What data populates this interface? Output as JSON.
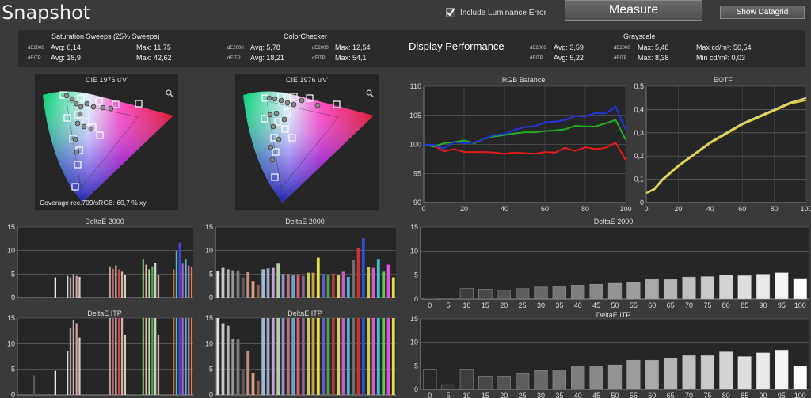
{
  "app": {
    "title": "Snapshot"
  },
  "toolbar": {
    "include_lum_label": "Include Luminance Error",
    "include_lum_checked": true,
    "measure_label": "Measure",
    "datagrid_label": "Show Datagrid"
  },
  "summary": {
    "saturation": {
      "title": "Saturation Sweeps (25% Sweeps)",
      "m1": "dE2000",
      "m2": "dEITP",
      "avg1": "Avg: 6,14",
      "max1": "Max: 11,75",
      "avg2": "Avg: 18,9",
      "max2": "Max: 42,62"
    },
    "colorchecker": {
      "title": "ColorChecker",
      "m1": "dE2000",
      "m2": "dEITP",
      "avg1": "Avg: 5,78",
      "max1": "Max: 12,54",
      "avg2": "Avg: 18,21",
      "max2": "Max: 54,1"
    },
    "display_performance": "Display Performance",
    "grayscale": {
      "title": "Grayscale",
      "m1": "dE2000",
      "m2": "dEITP",
      "avg1": "Avg: 3,59",
      "max1": "Max: 5,48",
      "avg2": "Avg: 5,22",
      "max2": "Max: 8,38",
      "maxcd": "Max cd/m²:  50,54",
      "mincd": "Min cd/m²:  0,03"
    }
  },
  "cie": {
    "title1": "CIE 1976 u'v'",
    "title2": "CIE 1976 u'v'",
    "coverage": "Coverage rec.709/sRGB:  60,7 % xy"
  },
  "chart_data": [
    {
      "type": "line",
      "title": "RGB Balance",
      "ylim": [
        90,
        110
      ],
      "xlim": [
        0,
        100
      ],
      "yticks": [
        90,
        95,
        100,
        105,
        110
      ],
      "xticks": [
        0,
        20,
        40,
        60,
        80,
        100
      ],
      "x": [
        0,
        5,
        10,
        15,
        20,
        25,
        30,
        35,
        40,
        45,
        50,
        55,
        60,
        65,
        70,
        75,
        80,
        85,
        90,
        95,
        100
      ],
      "series": [
        {
          "color": "#e81b1b",
          "values": [
            100,
            99.8,
            98.8,
            99.2,
            98.7,
            98.7,
            98.7,
            98.6,
            98.4,
            98.6,
            98.5,
            98.4,
            98.7,
            98.6,
            99.4,
            98.9,
            99.5,
            99.2,
            99.4,
            100.3,
            97.3
          ]
        },
        {
          "color": "#22b022",
          "values": [
            100,
            99.6,
            100.2,
            100.4,
            100.7,
            100.2,
            101,
            101.4,
            101.6,
            101.9,
            102.1,
            102.1,
            102.3,
            102.4,
            102.6,
            103.2,
            103.1,
            103.1,
            103.6,
            104.2,
            100.8
          ]
        },
        {
          "color": "#2233e0",
          "values": [
            100,
            99.9,
            99.3,
            100.4,
            100.2,
            100.3,
            101,
            101.6,
            101.8,
            102.5,
            103,
            103.1,
            103.8,
            103.9,
            104.2,
            104.9,
            104.8,
            105.4,
            105.3,
            106.5,
            102.5
          ]
        }
      ]
    },
    {
      "type": "line",
      "title": "EOTF",
      "ylim": [
        0,
        0.5
      ],
      "xlim": [
        0,
        100
      ],
      "yticks": [
        0,
        0.1,
        0.2,
        0.3,
        0.4,
        0.5
      ],
      "xticks": [
        0,
        20,
        40,
        60,
        80,
        100
      ],
      "x": [
        0,
        5,
        10,
        20,
        30,
        40,
        50,
        60,
        70,
        80,
        90,
        100
      ],
      "series": [
        {
          "color": "#d0d0a0",
          "values": [
            0.04,
            0.06,
            0.1,
            0.16,
            0.21,
            0.26,
            0.3,
            0.34,
            0.37,
            0.4,
            0.43,
            0.45
          ]
        },
        {
          "color": "#e6d230",
          "values": [
            0.04,
            0.055,
            0.095,
            0.155,
            0.205,
            0.255,
            0.295,
            0.335,
            0.365,
            0.395,
            0.425,
            0.44
          ]
        }
      ]
    },
    {
      "type": "bar",
      "title": "DeltaE 2000",
      "ylim": [
        0,
        15
      ],
      "yticks": [
        0,
        5,
        10,
        15
      ],
      "values": [
        0,
        0,
        0,
        0,
        0,
        0.1,
        0,
        0,
        0,
        0,
        0,
        0,
        4.3,
        0,
        0,
        0,
        4.6,
        4.3,
        5,
        4.6,
        4.4,
        0,
        0,
        0,
        0,
        0,
        0,
        0,
        0,
        0,
        6.6,
        6.1,
        6.8,
        6,
        5.5,
        4.8,
        0,
        0,
        0,
        0,
        0,
        8.2,
        7,
        6,
        6.6,
        7.4,
        4.8,
        0,
        0,
        0,
        0,
        6,
        10,
        11.7,
        7.2,
        8.2,
        6.8,
        6.6
      ],
      "colors": [
        "#a2a2a2",
        "#a2a2a2",
        "#a2a2a2",
        "#a2a2a2",
        "#a2a2a2",
        "#9c9c9c",
        "#a2a2a2",
        "#a2a2a2",
        "#a2a2a2",
        "#a2a2a2",
        "#a2a2a2",
        "#a2a2a2",
        "#e8e8e8",
        "#a2a2a2",
        "#a2a2a2",
        "#a2a2a2",
        "#d8d8d8",
        "#a9a0a0",
        "#c9aaaa",
        "#d49a9a",
        "#cfc9c9",
        "#a2a2a2",
        "#a2a2a2",
        "#a2a2a2",
        "#a2a2a2",
        "#a2a2a2",
        "#a2a2a2",
        "#a2a2a2",
        "#a2a2a2",
        "#a2a2a2",
        "#c2a09a",
        "#b07070",
        "#c8aaa0",
        "#d44a4a",
        "#d8b0b0",
        "#d8d0c0",
        "#a2a2a2",
        "#a2a2a2",
        "#a2a2a2",
        "#a2a2a2",
        "#a2a2a2",
        "#6dba6d",
        "#d8c8a0",
        "#c8d8a0",
        "#5ca05c",
        "#c0d8c0",
        "#d8b8a0",
        "#a2a2a2",
        "#a2a2a2",
        "#a2a2a2",
        "#a2a2a2",
        "#d86a2a",
        "#50c0d0",
        "#4848d8",
        "#a060c0",
        "#50c0d0",
        "#c070c0",
        "#d88a3a"
      ]
    },
    {
      "type": "bar",
      "title": "DeltaE 2000",
      "ylim": [
        0,
        15
      ],
      "yticks": [
        0,
        5,
        10,
        15
      ],
      "values": [
        5.6,
        6.3,
        6,
        5.8,
        5.8,
        4.3,
        5.4,
        3.5,
        2.7,
        6,
        6.2,
        6.3,
        7.2,
        5,
        5,
        4.7,
        4.9,
        4.6,
        5.3,
        5.3,
        8.5,
        5,
        4.8,
        5.1,
        4.7,
        5.5,
        4.4,
        8,
        10.5,
        12.6,
        6.5,
        6.3,
        8.2,
        5.5,
        7,
        4.3
      ],
      "colors": [
        "#e0e0e0",
        "#c8c8c8",
        "#b0b0b0",
        "#989898",
        "#7a7a7a",
        "#5a5a5a",
        "#c09080",
        "#d8a080",
        "#906050",
        "#a0b8d8",
        "#a0a8c0",
        "#c0a8d8",
        "#b8d0a0",
        "#9090d8",
        "#c07070",
        "#70a0d0",
        "#d86060",
        "#906090",
        "#c0d060",
        "#d0a040",
        "#e0e050",
        "#6060c0",
        "#50a050",
        "#b04040",
        "#e0d060",
        "#c060c0",
        "#50b0d0",
        "#6d6d6d",
        "#d03030",
        "#3050d0",
        "#d0d040",
        "#d060d0",
        "#40c0d0",
        "#50d050",
        "#e050e0",
        "#e0e040"
      ]
    },
    {
      "type": "bar",
      "title": "DeltaE 2000",
      "ylim": [
        0,
        15
      ],
      "yticks": [
        0,
        5,
        10,
        15
      ],
      "categories": [
        "0",
        "5",
        "10",
        "15",
        "20",
        "25",
        "30",
        "35",
        "40",
        "45",
        "50",
        "55",
        "60",
        "65",
        "70",
        "75",
        "80",
        "85",
        "90",
        "95",
        "100"
      ],
      "values": [
        0.3,
        0,
        2.2,
        2.1,
        1.9,
        2.2,
        2.5,
        2.7,
        2.9,
        3.1,
        3.3,
        3.5,
        4.1,
        4.1,
        4.6,
        4.7,
        5,
        4.9,
        5.2,
        5.5,
        4.3
      ]
    },
    {
      "type": "bar",
      "title": "DeltaE ITP",
      "ylim": [
        0,
        15
      ],
      "yticks": [
        0,
        5,
        10,
        15
      ],
      "values": [
        0,
        0,
        0,
        0,
        0,
        3.8,
        0,
        0,
        0,
        0,
        0,
        0,
        4.7,
        0,
        0,
        0,
        8.6,
        13,
        14.7,
        14,
        11.2,
        0,
        0,
        0,
        0,
        0,
        0,
        0,
        0,
        0,
        15,
        15,
        15,
        15,
        15,
        11.7,
        0,
        0,
        0,
        0,
        0,
        15,
        15,
        15,
        15,
        15,
        11.7,
        0,
        0,
        0,
        0,
        15,
        15,
        15,
        15,
        15,
        15,
        15
      ],
      "colors": [
        "#a2a2a2",
        "#a2a2a2",
        "#a2a2a2",
        "#a2a2a2",
        "#a2a2a2",
        "#5a5a5a",
        "#a2a2a2",
        "#a2a2a2",
        "#a2a2a2",
        "#a2a2a2",
        "#a2a2a2",
        "#a2a2a2",
        "#e8e8e8",
        "#a2a2a2",
        "#a2a2a2",
        "#a2a2a2",
        "#d8d8d8",
        "#a9a0a0",
        "#c9aaaa",
        "#d49a9a",
        "#cfc9c9",
        "#a2a2a2",
        "#a2a2a2",
        "#a2a2a2",
        "#a2a2a2",
        "#a2a2a2",
        "#a2a2a2",
        "#a2a2a2",
        "#a2a2a2",
        "#a2a2a2",
        "#c2a09a",
        "#b07070",
        "#c8aaa0",
        "#d44a4a",
        "#d8b0b0",
        "#d8d0c0",
        "#a2a2a2",
        "#a2a2a2",
        "#a2a2a2",
        "#a2a2a2",
        "#a2a2a2",
        "#6dba6d",
        "#d8c8a0",
        "#c8d8a0",
        "#5ca05c",
        "#c0d8c0",
        "#d8b8a0",
        "#a2a2a2",
        "#a2a2a2",
        "#a2a2a2",
        "#a2a2a2",
        "#d86a2a",
        "#50c0d0",
        "#4848d8",
        "#a060c0",
        "#50c0d0",
        "#c070c0",
        "#d88a3a"
      ]
    },
    {
      "type": "bar",
      "title": "DeltaE ITP",
      "ylim": [
        0,
        15
      ],
      "yticks": [
        0,
        5,
        10,
        15
      ],
      "values": [
        15,
        14,
        13.5,
        11,
        10.8,
        4.9,
        8.6,
        4.3,
        2.8,
        15,
        15,
        15,
        15,
        15,
        15,
        15,
        15,
        15,
        15,
        15,
        15,
        15,
        15,
        15,
        15,
        15,
        15,
        15,
        15,
        15,
        15,
        15,
        15,
        15,
        15,
        15
      ],
      "colors": [
        "#e0e0e0",
        "#c8c8c8",
        "#b0b0b0",
        "#989898",
        "#7a7a7a",
        "#5a5a5a",
        "#c09080",
        "#d8a080",
        "#906050",
        "#a0b8d8",
        "#a0a8c0",
        "#c0a8d8",
        "#b8d0a0",
        "#9090d8",
        "#c07070",
        "#70a0d0",
        "#d86060",
        "#906090",
        "#c0d060",
        "#d0a040",
        "#e0e050",
        "#6060c0",
        "#50a050",
        "#b04040",
        "#e0d060",
        "#c060c0",
        "#50b0d0",
        "#6d6d6d",
        "#d03030",
        "#3050d0",
        "#d0d040",
        "#d060d0",
        "#40c0d0",
        "#50d050",
        "#e050e0",
        "#e0e040"
      ]
    },
    {
      "type": "bar",
      "title": "DeltaE ITP",
      "ylim": [
        0,
        15
      ],
      "yticks": [
        0,
        5,
        10,
        15
      ],
      "categories": [
        "0",
        "5",
        "10",
        "15",
        "20",
        "25",
        "30",
        "35",
        "40",
        "45",
        "50",
        "55",
        "60",
        "65",
        "70",
        "75",
        "80",
        "85",
        "90",
        "95",
        "100"
      ],
      "values": [
        4.3,
        1,
        4.3,
        2.8,
        2.8,
        3.3,
        4,
        4.1,
        5,
        5,
        5.2,
        6.2,
        6.2,
        6.6,
        7.2,
        7.2,
        8,
        7,
        7.8,
        8.4,
        5
      ]
    }
  ]
}
